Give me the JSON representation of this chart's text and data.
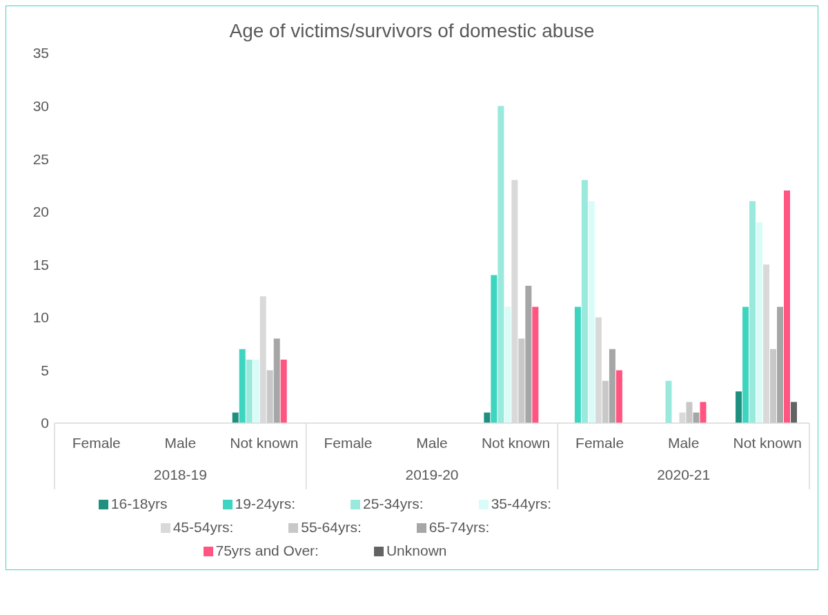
{
  "chart_data": {
    "type": "bar",
    "title": "Age of victims/survivors of domestic abuse",
    "categories": [
      "Female",
      "Male",
      "Not known",
      "Female",
      "Male",
      "Not known",
      "Female",
      "Male",
      "Not known"
    ],
    "annotations": [
      "2018-19",
      "2019-20",
      "2020-21"
    ],
    "series": [
      {
        "name": "16-18yrs",
        "color": "#1f9080",
        "values": [
          null,
          null,
          1,
          null,
          null,
          1,
          null,
          null,
          3
        ]
      },
      {
        "name": "19-24yrs:",
        "color": "#3dd5c0",
        "values": [
          null,
          null,
          7,
          null,
          null,
          14,
          11,
          null,
          11
        ]
      },
      {
        "name": "25-34yrs:",
        "color": "#99e9dc",
        "values": [
          null,
          null,
          6,
          null,
          null,
          30,
          23,
          4,
          21
        ]
      },
      {
        "name": "35-44yrs:",
        "color": "#d9fcf8",
        "values": [
          null,
          null,
          6,
          null,
          null,
          11,
          21,
          null,
          19
        ]
      },
      {
        "name": "45-54yrs:",
        "color": "#d9d9d9",
        "values": [
          null,
          null,
          12,
          null,
          null,
          23,
          10,
          1,
          15
        ]
      },
      {
        "name": "55-64yrs:",
        "color": "#c8c8c8",
        "values": [
          null,
          null,
          5,
          null,
          null,
          8,
          4,
          2,
          7
        ]
      },
      {
        "name": "65-74yrs:",
        "color": "#a6a6a6",
        "values": [
          null,
          null,
          8,
          null,
          null,
          13,
          7,
          1,
          11
        ]
      },
      {
        "name": "75yrs and Over:",
        "color": "#ff5580",
        "values": [
          null,
          null,
          6,
          null,
          null,
          11,
          5,
          2,
          22
        ]
      },
      {
        "name": "Unknown",
        "color": "#636363",
        "values": [
          null,
          null,
          null,
          null,
          null,
          null,
          null,
          null,
          2
        ]
      }
    ],
    "ylim": [
      0,
      35
    ],
    "yticks": [
      0,
      5,
      10,
      15,
      20,
      25,
      30,
      35
    ],
    "legend": "bottom"
  }
}
